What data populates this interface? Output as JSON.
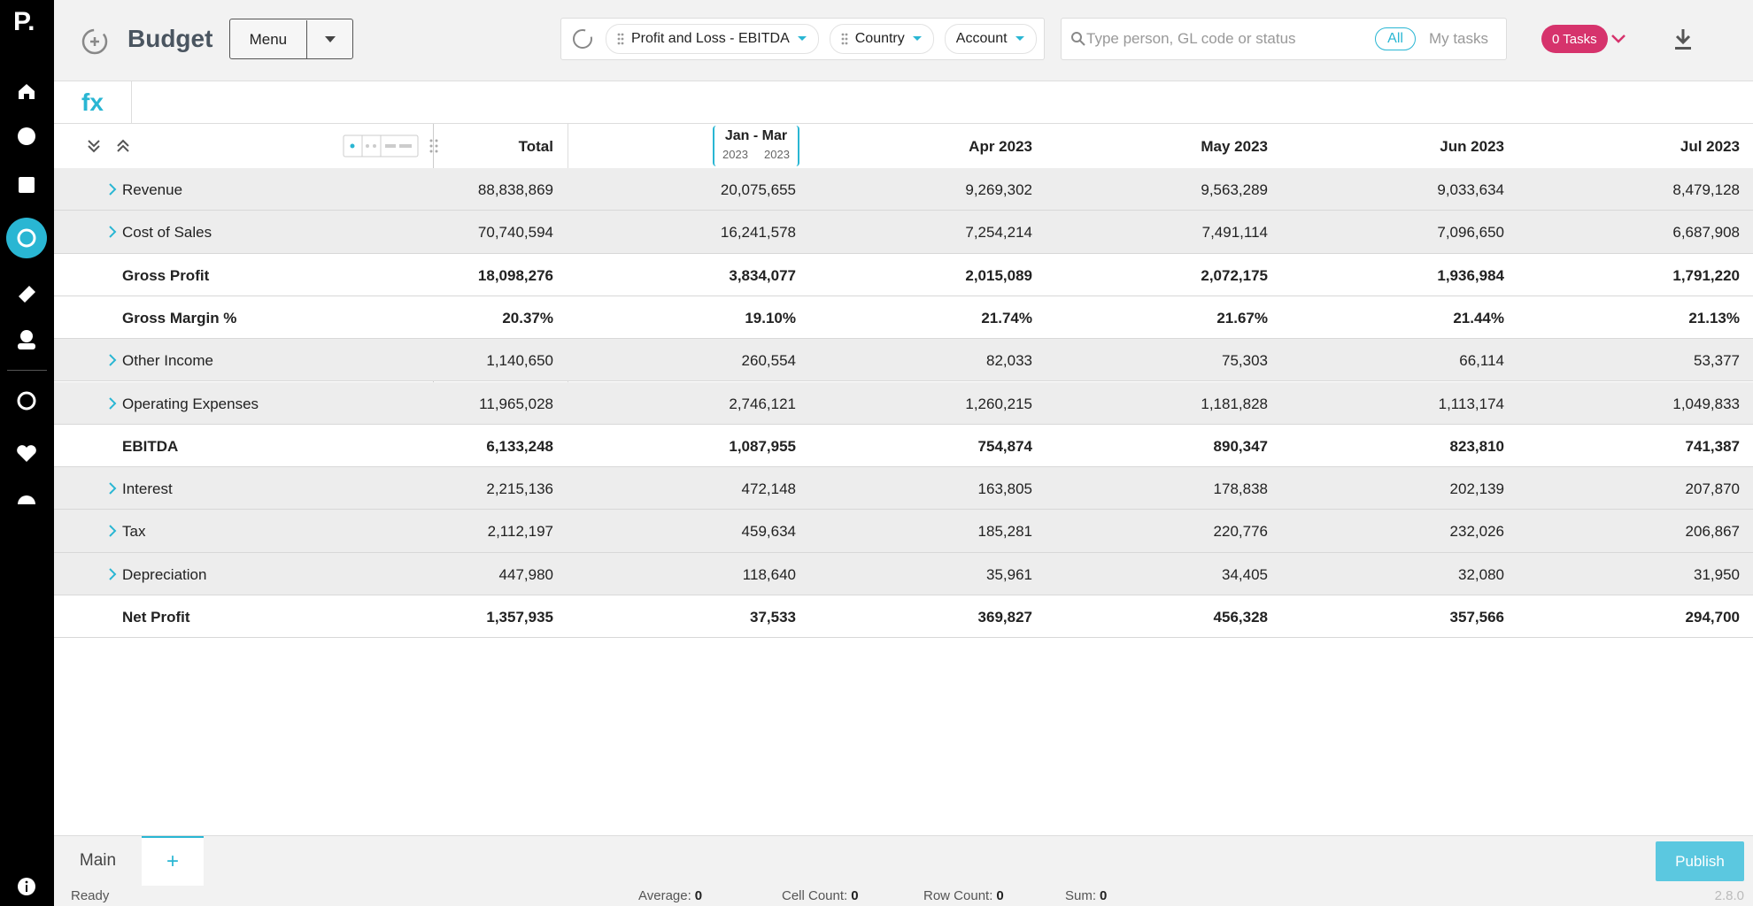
{
  "logo": "P.",
  "header": {
    "title": "Budget",
    "menu": "Menu",
    "filters": [
      "Profit and Loss - EBITDA",
      "Country",
      "Account"
    ],
    "search_placeholder": "Type person, GL code or status",
    "toggle": [
      "All",
      "My tasks"
    ],
    "tasks": "0 Tasks"
  },
  "formula_bar": {
    "label": "fx"
  },
  "table": {
    "total_column": "Total",
    "period_columns": [
      {
        "label": "Jan - Mar",
        "sub": [
          "2023",
          "2023"
        ]
      },
      {
        "label": "Apr 2023"
      },
      {
        "label": "May 2023"
      },
      {
        "label": "Jun 2023"
      },
      {
        "label": "Jul 2023"
      }
    ],
    "rows": [
      {
        "label": "Revenue",
        "bold": false,
        "expandable": true,
        "cells": [
          "88,838,869",
          "20,075,655",
          "9,269,302",
          "9,563,289",
          "9,033,634",
          "8,479,128"
        ]
      },
      {
        "label": "Cost of Sales",
        "bold": false,
        "expandable": true,
        "cells": [
          "70,740,594",
          "16,241,578",
          "7,254,214",
          "7,491,114",
          "7,096,650",
          "6,687,908"
        ]
      },
      {
        "label": "Gross Profit",
        "bold": true,
        "expandable": false,
        "cells": [
          "18,098,276",
          "3,834,077",
          "2,015,089",
          "2,072,175",
          "1,936,984",
          "1,791,220"
        ]
      },
      {
        "label": "Gross Margin %",
        "bold": true,
        "expandable": false,
        "cells": [
          "20.37%",
          "19.10%",
          "21.74%",
          "21.67%",
          "21.44%",
          "21.13%"
        ]
      },
      {
        "label": "Other Income",
        "bold": false,
        "expandable": true,
        "cells": [
          "1,140,650",
          "260,554",
          "82,033",
          "75,303",
          "66,114",
          "53,377"
        ]
      },
      {
        "label": "Operating Expenses",
        "bold": false,
        "expandable": true,
        "cells": [
          "11,965,028",
          "2,746,121",
          "1,260,215",
          "1,181,828",
          "1,113,174",
          "1,049,833"
        ]
      },
      {
        "label": "EBITDA",
        "bold": true,
        "expandable": false,
        "cells": [
          "6,133,248",
          "1,087,955",
          "754,874",
          "890,347",
          "823,810",
          "741,387"
        ]
      },
      {
        "label": "Interest",
        "bold": false,
        "expandable": true,
        "cells": [
          "2,215,136",
          "472,148",
          "163,805",
          "178,838",
          "202,139",
          "207,870"
        ]
      },
      {
        "label": "Tax",
        "bold": false,
        "expandable": true,
        "cells": [
          "2,112,197",
          "459,634",
          "185,281",
          "220,776",
          "232,026",
          "206,867"
        ]
      },
      {
        "label": "Depreciation",
        "bold": false,
        "expandable": true,
        "cells": [
          "447,980",
          "118,640",
          "35,961",
          "34,405",
          "32,080",
          "31,950"
        ]
      },
      {
        "label": "Net Profit",
        "bold": true,
        "expandable": false,
        "cells": [
          "1,357,935",
          "37,533",
          "369,827",
          "456,328",
          "357,566",
          "294,700"
        ]
      }
    ]
  },
  "tabs": [
    "Main",
    "+"
  ],
  "publish": "Publish",
  "status": {
    "state": "Ready",
    "metrics": [
      {
        "label": "Average:",
        "value": "0"
      },
      {
        "label": "Cell Count:",
        "value": "0"
      },
      {
        "label": "Row Count:",
        "value": "0"
      },
      {
        "label": "Sum:",
        "value": "0"
      }
    ],
    "version": "2.8.0"
  }
}
